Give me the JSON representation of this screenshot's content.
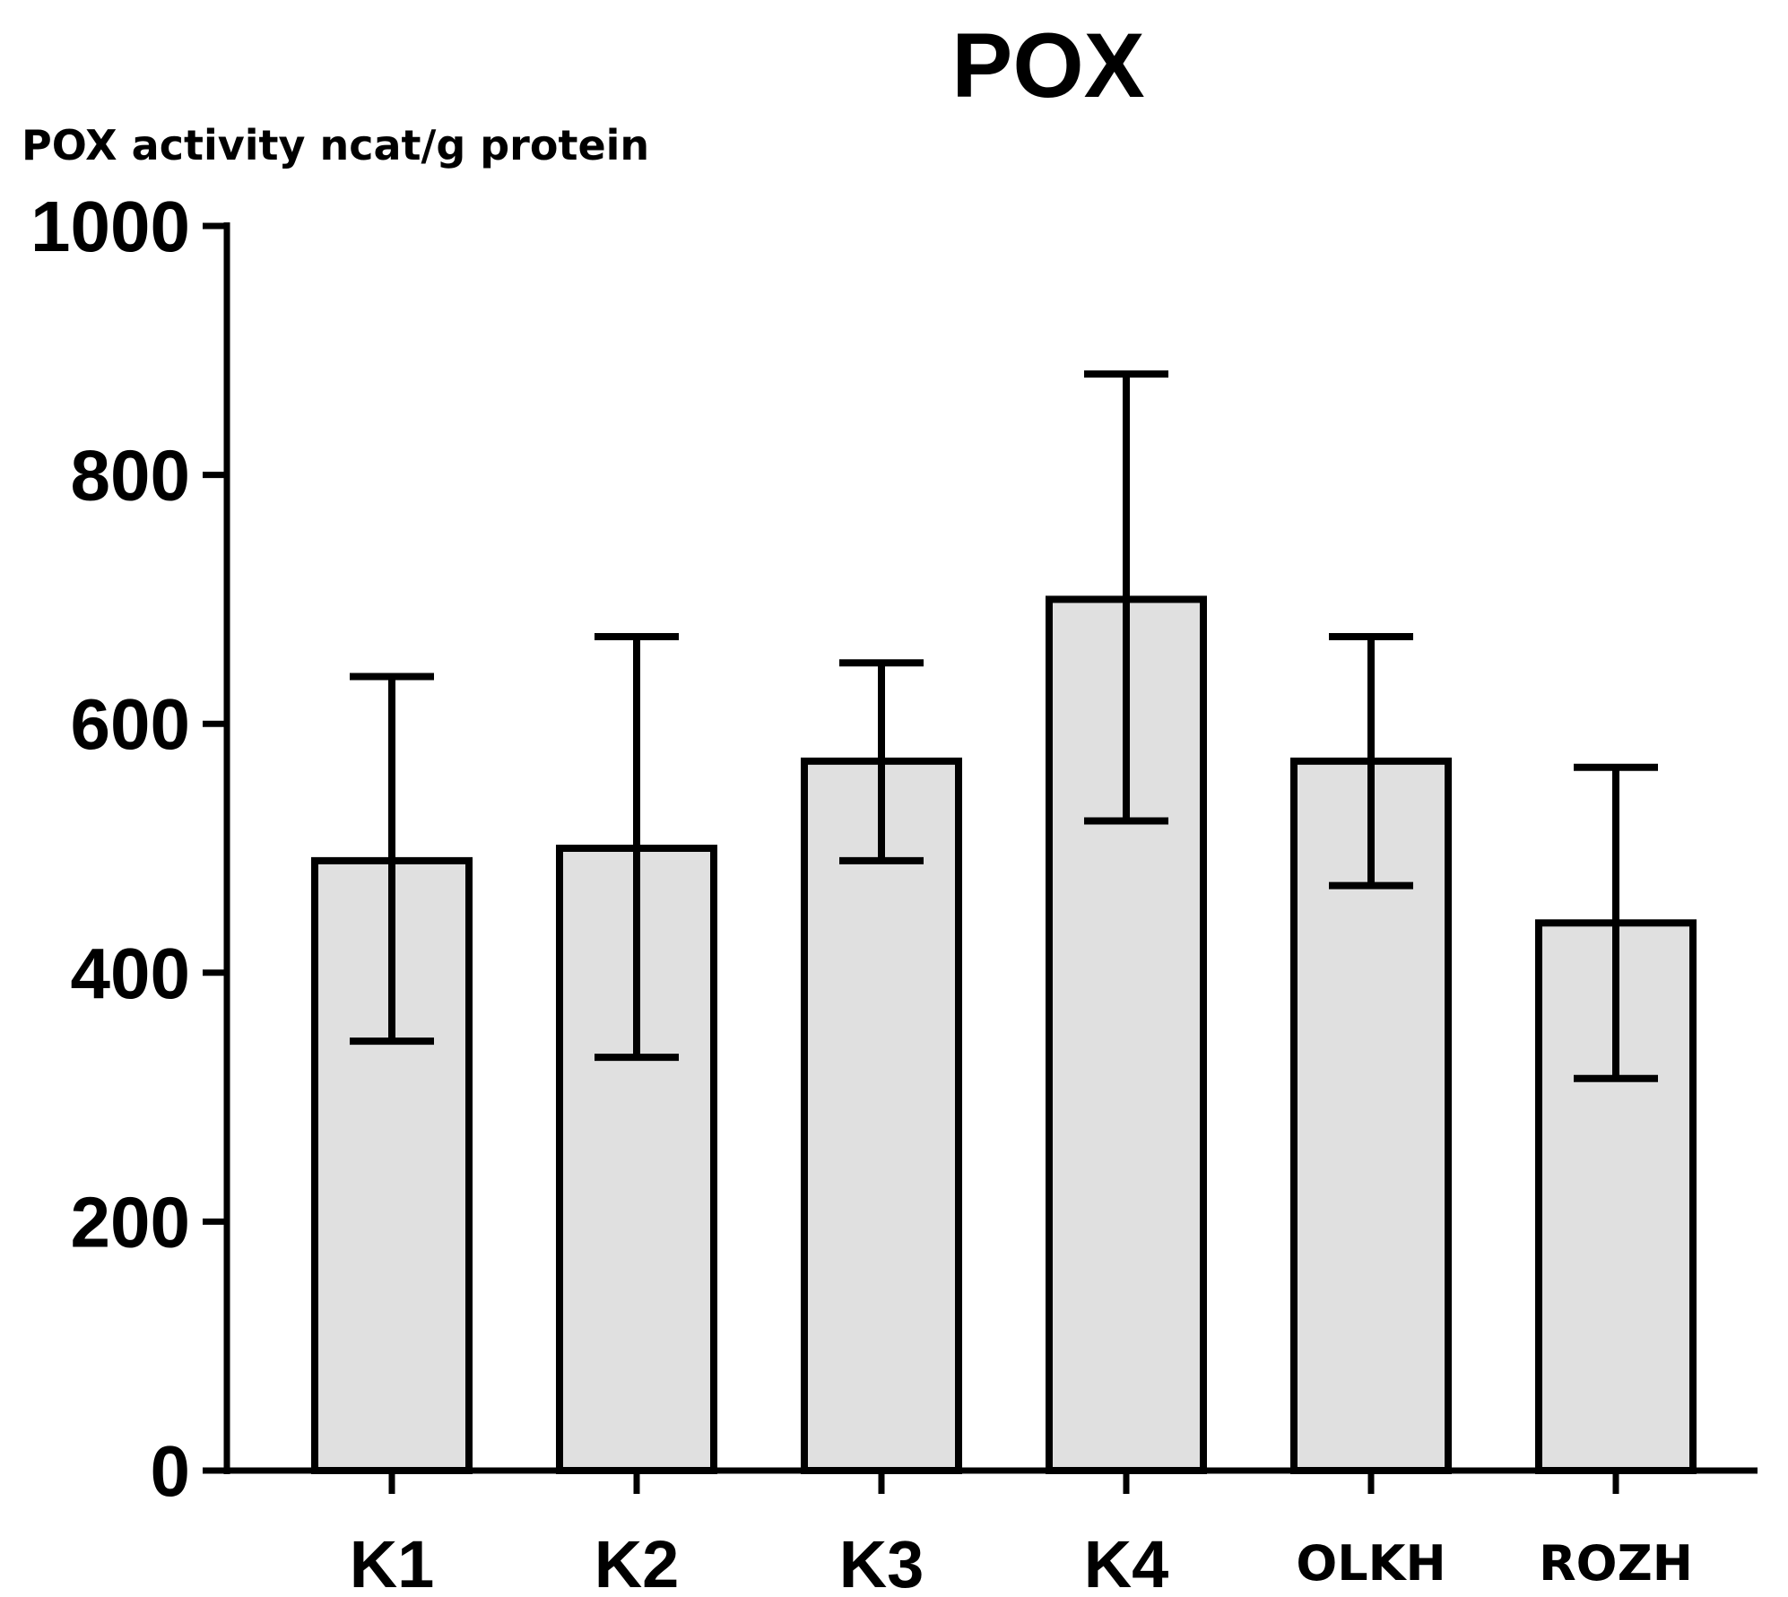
{
  "chart_data": {
    "type": "bar",
    "title": "POX",
    "ylabel": "POX activity ncat/g protein",
    "xlabel": "",
    "ylim": [
      0,
      1000
    ],
    "yticks": [
      "0",
      "200",
      "400",
      "600",
      "800",
      "1000"
    ],
    "categories": [
      "K1",
      "K2",
      "K3",
      "K4",
      "OLKH",
      "ROZH"
    ],
    "values": [
      490,
      500,
      570,
      700,
      570,
      440
    ],
    "error_low": [
      345,
      332,
      490,
      522,
      470,
      315
    ],
    "error_high": [
      638,
      670,
      649,
      881,
      670,
      565
    ],
    "grid": false,
    "legend": "none",
    "colors": {
      "bar_fill": "#e0e0e0",
      "bar_stroke": "#000000",
      "axis": "#000000",
      "error_bar": "#000000"
    }
  }
}
